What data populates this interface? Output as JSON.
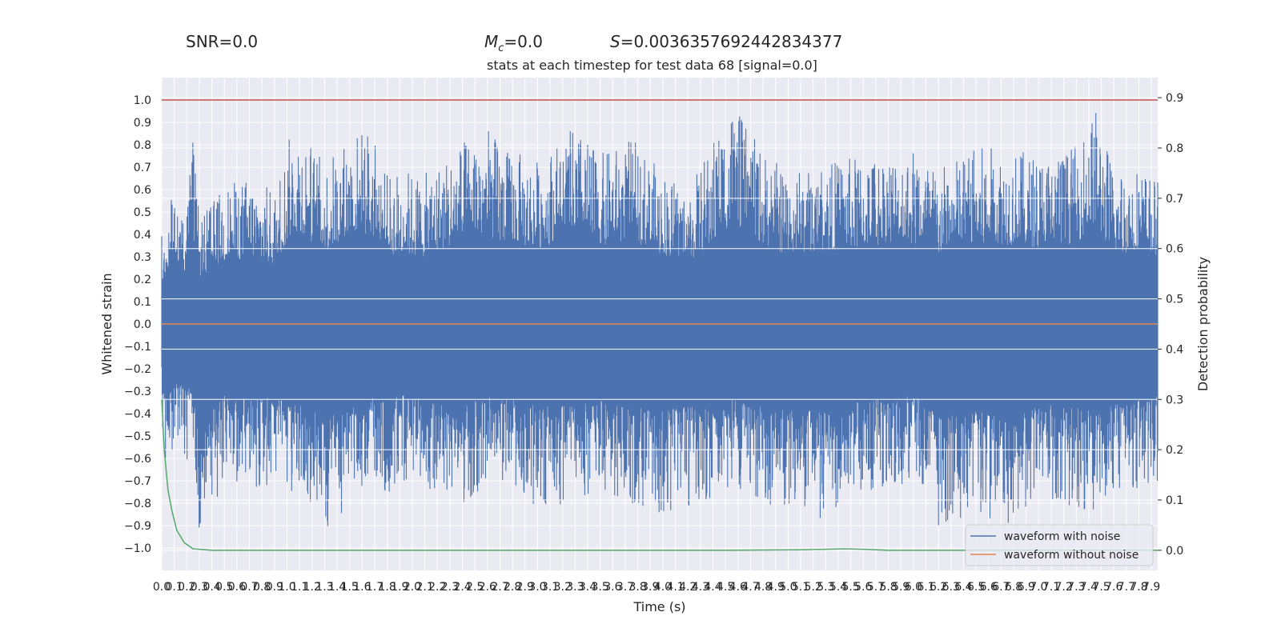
{
  "header": {
    "snr": "SNR=0.0",
    "mc_symbol": "M",
    "mc_sub": "c",
    "mc_value": "=0.0",
    "stat_symbol": "S",
    "stat_value": "=0.0036357692442834377"
  },
  "chart_data": {
    "type": "line",
    "title": "stats at each timestep for test data 68 [signal=0.0]",
    "xlabel": "Time (s)",
    "ylabel": "Whitened strain",
    "y2label": "Detection probability",
    "xlim": [
      0.0,
      7.95
    ],
    "ylim": [
      -1.1,
      1.1
    ],
    "y2lim": [
      -0.04,
      0.94
    ],
    "x_ticks": [
      0.0,
      0.1,
      0.2,
      0.3,
      0.4,
      0.5,
      0.6,
      0.7,
      0.8,
      0.9,
      1.0,
      1.1,
      1.2,
      1.3,
      1.4,
      1.5,
      1.6,
      1.7,
      1.8,
      1.9,
      2.0,
      2.1,
      2.2,
      2.3,
      2.4,
      2.5,
      2.6,
      2.7,
      2.8,
      2.9,
      3.0,
      3.1,
      3.2,
      3.3,
      3.4,
      3.5,
      3.6,
      3.7,
      3.8,
      3.9,
      4.0,
      4.1,
      4.2,
      4.3,
      4.4,
      4.5,
      4.6,
      4.7,
      4.8,
      4.9,
      5.0,
      5.1,
      5.2,
      5.3,
      5.4,
      5.5,
      5.6,
      5.7,
      5.8,
      5.9,
      6.0,
      6.1,
      6.2,
      6.3,
      6.4,
      6.5,
      6.6,
      6.7,
      6.8,
      6.9,
      7.0,
      7.1,
      7.2,
      7.3,
      7.4,
      7.5,
      7.6,
      7.7,
      7.8,
      7.9
    ],
    "y_ticks": [
      -1.0,
      -0.9,
      -0.8,
      -0.7,
      -0.6,
      -0.5,
      -0.4,
      -0.3,
      -0.2,
      -0.1,
      0.0,
      0.1,
      0.2,
      0.3,
      0.4,
      0.5,
      0.6,
      0.7,
      0.8,
      0.9,
      1.0
    ],
    "y2_ticks": [
      0.0,
      0.1,
      0.2,
      0.3,
      0.4,
      0.5,
      0.6,
      0.7,
      0.8,
      0.9
    ],
    "threshold_line": {
      "y": 1.0,
      "color": "#c44e52"
    },
    "series": [
      {
        "name": "waveform with noise",
        "color": "#4c72b0",
        "axis": "left",
        "style": "dense-noise",
        "envelope_x": [
          0.0,
          0.05,
          0.1,
          0.15,
          0.2,
          0.25,
          0.3,
          0.5,
          0.7,
          0.9,
          1.05,
          1.1,
          1.3,
          1.5,
          1.65,
          1.8,
          1.9,
          2.1,
          2.4,
          2.6,
          2.75,
          3.0,
          3.3,
          3.5,
          3.75,
          3.95,
          4.2,
          4.55,
          4.75,
          5.0,
          5.3,
          5.5,
          6.0,
          6.2,
          6.5,
          6.7,
          7.0,
          7.3,
          7.45,
          7.6,
          7.8,
          7.95
        ],
        "envelope_top": [
          0.42,
          0.55,
          0.74,
          0.45,
          0.55,
          0.83,
          0.47,
          0.62,
          0.66,
          0.6,
          0.9,
          0.9,
          0.72,
          0.85,
          0.89,
          0.67,
          0.7,
          0.67,
          0.82,
          0.88,
          0.78,
          0.74,
          0.88,
          0.76,
          0.83,
          0.71,
          0.6,
          0.99,
          0.81,
          0.68,
          0.72,
          0.75,
          0.8,
          0.7,
          0.8,
          0.79,
          0.76,
          0.8,
          0.98,
          0.7,
          0.72,
          0.64
        ],
        "envelope_bottom": [
          -0.43,
          -0.72,
          -0.6,
          -0.58,
          -0.65,
          -0.6,
          -1.0,
          -0.7,
          -0.74,
          -0.73,
          -0.8,
          -0.75,
          -0.95,
          -0.8,
          -0.7,
          -0.78,
          -0.7,
          -0.75,
          -0.8,
          -0.73,
          -0.7,
          -0.82,
          -0.8,
          -0.75,
          -0.8,
          -0.87,
          -0.82,
          -0.75,
          -0.8,
          -0.82,
          -0.88,
          -0.78,
          -0.7,
          -0.9,
          -0.85,
          -0.92,
          -0.8,
          -0.82,
          -0.84,
          -0.8,
          -0.75,
          -0.7
        ]
      },
      {
        "name": "waveform without noise",
        "color": "#dd8452",
        "axis": "left",
        "x": [
          0.0,
          7.95
        ],
        "y": [
          0.0,
          0.0
        ]
      },
      {
        "name": "Detection probability",
        "color": "#55a868",
        "axis": "right",
        "x": [
          0.0,
          0.02,
          0.05,
          0.08,
          0.12,
          0.18,
          0.25,
          0.4,
          1.0,
          2.0,
          3.0,
          4.0,
          4.5,
          5.1,
          5.3,
          5.45,
          5.6,
          5.8,
          6.0,
          7.0,
          7.95
        ],
        "y": [
          0.3,
          0.2,
          0.12,
          0.08,
          0.04,
          0.015,
          0.003,
          0.0,
          0.0,
          0.0,
          0.0,
          0.0,
          0.0,
          0.001,
          0.002,
          0.003,
          0.002,
          0.0,
          0.0,
          0.0,
          0.0
        ]
      }
    ],
    "legend": {
      "position": "lower-right",
      "entries": [
        {
          "label": "waveform with noise",
          "color": "#4c72b0"
        },
        {
          "label": "waveform without noise",
          "color": "#dd8452"
        }
      ]
    },
    "grid": true,
    "style": "seaborn-darkgrid"
  }
}
